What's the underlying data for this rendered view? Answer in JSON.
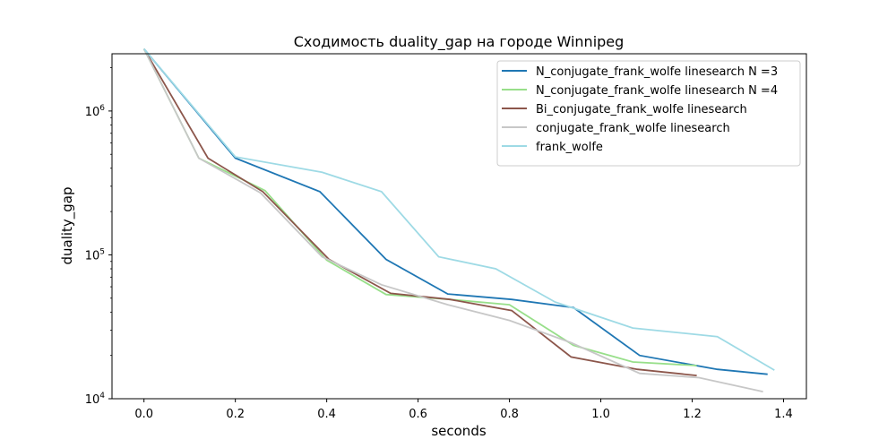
{
  "chart_data": {
    "type": "line",
    "title": "Сходимость duality_gap на городе Winnipeg",
    "xlabel": "seconds",
    "ylabel": "duality_gap",
    "xlim": [
      -0.07,
      1.45
    ],
    "ylim": [
      10000,
      2500000
    ],
    "yscale": "log",
    "legend_placement": "top-right",
    "grid": false,
    "x_ticks": [
      {
        "value": 0.0,
        "label": "0.0"
      },
      {
        "value": 0.2,
        "label": "0.2"
      },
      {
        "value": 0.4,
        "label": "0.4"
      },
      {
        "value": 0.6,
        "label": "0.6"
      },
      {
        "value": 0.8,
        "label": "0.8"
      },
      {
        "value": 1.0,
        "label": "1.0"
      },
      {
        "value": 1.2,
        "label": "1.2"
      },
      {
        "value": 1.4,
        "label": "1.4"
      }
    ],
    "y_ticks": [
      {
        "value": 10000,
        "base": "10",
        "exp": "4"
      },
      {
        "value": 100000,
        "base": "10",
        "exp": "5"
      },
      {
        "value": 1000000,
        "base": "10",
        "exp": "6"
      }
    ],
    "series": [
      {
        "name": "N_conjugate_frank_wolfe linesearch N =3",
        "color": "#1f77b4",
        "points": [
          [
            0.0,
            2700000
          ],
          [
            0.2,
            470000
          ],
          [
            0.385,
            275000
          ],
          [
            0.53,
            93000
          ],
          [
            0.665,
            53500
          ],
          [
            0.805,
            49000
          ],
          [
            0.94,
            43000
          ],
          [
            1.085,
            20000
          ],
          [
            1.255,
            16000
          ],
          [
            1.365,
            14800
          ]
        ]
      },
      {
        "name": "N_conjugate_frank_wolfe linesearch N =4",
        "color": "#98df8a",
        "points": [
          [
            0.0,
            2700000
          ],
          [
            0.12,
            470000
          ],
          [
            0.265,
            280000
          ],
          [
            0.4,
            92000
          ],
          [
            0.53,
            53000
          ],
          [
            0.67,
            49000
          ],
          [
            0.8,
            45000
          ],
          [
            0.94,
            23500
          ],
          [
            1.07,
            18000
          ],
          [
            1.21,
            17000
          ]
        ]
      },
      {
        "name": "Bi_conjugate_frank_wolfe linesearch",
        "color": "#8c564b",
        "points": [
          [
            0.0,
            2700000
          ],
          [
            0.14,
            470000
          ],
          [
            0.26,
            275000
          ],
          [
            0.405,
            93000
          ],
          [
            0.54,
            54000
          ],
          [
            0.67,
            49000
          ],
          [
            0.805,
            41000
          ],
          [
            0.935,
            19500
          ],
          [
            1.08,
            16000
          ],
          [
            1.21,
            14500
          ]
        ]
      },
      {
        "name": "conjugate_frank_wolfe linesearch",
        "color": "#c7c7c7",
        "points": [
          [
            0.0,
            2700000
          ],
          [
            0.12,
            470000
          ],
          [
            0.255,
            270000
          ],
          [
            0.39,
            97000
          ],
          [
            0.52,
            62000
          ],
          [
            0.665,
            45000
          ],
          [
            0.8,
            35000
          ],
          [
            0.935,
            24500
          ],
          [
            1.085,
            15000
          ],
          [
            1.215,
            14000
          ],
          [
            1.355,
            11200
          ]
        ]
      },
      {
        "name": "frank_wolfe",
        "color": "#9edae5",
        "points": [
          [
            0.0,
            2700000
          ],
          [
            0.2,
            480000
          ],
          [
            0.39,
            375000
          ],
          [
            0.52,
            275000
          ],
          [
            0.645,
            97000
          ],
          [
            0.77,
            80000
          ],
          [
            0.9,
            47000
          ],
          [
            1.07,
            31000
          ],
          [
            1.255,
            27000
          ],
          [
            1.38,
            15800
          ]
        ]
      }
    ]
  }
}
